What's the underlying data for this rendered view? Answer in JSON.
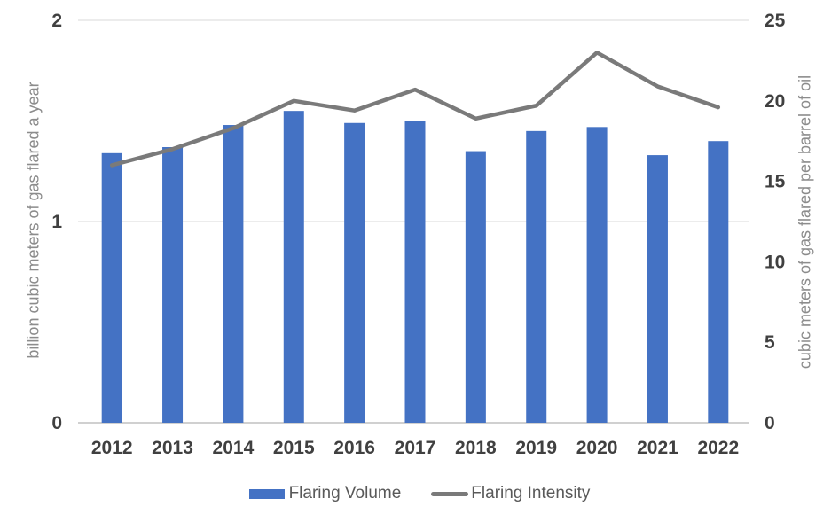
{
  "chart_data": {
    "type": "bar",
    "subtype": "combo-bar-line-dual-axis",
    "title": "",
    "categories": [
      "2012",
      "2013",
      "2014",
      "2015",
      "2016",
      "2017",
      "2018",
      "2019",
      "2020",
      "2021",
      "2022"
    ],
    "series": [
      {
        "name": "Flaring Volume",
        "type": "bar",
        "axis": "left",
        "color": "#4472C4",
        "values": [
          1.34,
          1.37,
          1.48,
          1.55,
          1.49,
          1.5,
          1.35,
          1.45,
          1.47,
          1.33,
          1.4
        ]
      },
      {
        "name": "Flaring Intensity",
        "type": "line",
        "axis": "right",
        "color": "#7a7a7a",
        "values": [
          16.0,
          17.0,
          18.3,
          20.0,
          19.4,
          20.7,
          18.9,
          19.7,
          23.0,
          20.9,
          19.6
        ]
      }
    ],
    "left_axis": {
      "label": "billion cubic meters of gas flared a year",
      "min": 0,
      "max": 2,
      "ticks": [
        "0",
        "1",
        "2"
      ]
    },
    "right_axis": {
      "label": "cubic meters of gas flared per barrel of oil",
      "min": 0,
      "max": 25,
      "ticks": [
        "0",
        "5",
        "10",
        "15",
        "20",
        "25"
      ]
    },
    "grid": "horizontal-on-left-axis-ticks",
    "legend_position": "bottom"
  },
  "colors": {
    "bar_fill": "#4472C4",
    "line_stroke": "#7a7a7a",
    "gridline": "#d9d9d9",
    "axis_line": "#d0d0d0",
    "tick_text": "#404040",
    "axis_title_text": "#8c8c8c",
    "legend_text": "#595959",
    "background": "#ffffff"
  }
}
